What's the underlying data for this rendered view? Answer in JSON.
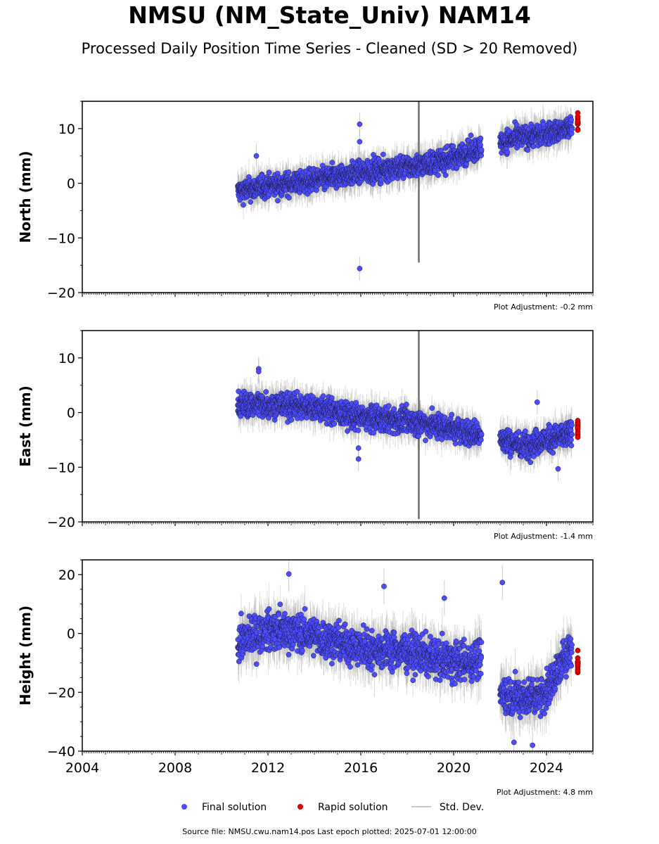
{
  "title": "NMSU (NM_State_Univ) NAM14",
  "subtitle": "Processed Daily Position Time Series - Cleaned (SD > 20 Removed)",
  "footer": "Source file: NMSU.cwu.nam14.pos  Last epoch plotted: 2025-07-01 12:00:00",
  "legend": {
    "final": "Final solution",
    "rapid": "Rapid solution",
    "std": "Std. Dev."
  },
  "colors": {
    "final": "#4b4bff",
    "rapid": "#e60000",
    "std": "#c8c8c8"
  },
  "x_ticks": [
    "2004",
    "2008",
    "2012",
    "2016",
    "2020",
    "2024"
  ],
  "chart_data": [
    {
      "type": "scatter",
      "ylabel": "North (mm)",
      "ylim": [
        -20,
        15
      ],
      "yticks": [
        -20,
        -10,
        0,
        10
      ],
      "xlim": [
        2004.0,
        2026.0
      ],
      "adjustment": "Plot Adjustment: -0.2 mm",
      "final_trend": [
        [
          2010.7,
          -1.5
        ],
        [
          2012.0,
          -0.5
        ],
        [
          2014.0,
          0.5
        ],
        [
          2016.0,
          2.0
        ],
        [
          2018.0,
          3.0
        ],
        [
          2019.5,
          4.0
        ],
        [
          2020.5,
          5.5
        ],
        [
          2021.2,
          6.5
        ],
        [
          2022.0,
          7.5
        ],
        [
          2023.0,
          8.5
        ],
        [
          2024.0,
          9.0
        ],
        [
          2025.0,
          10.0
        ]
      ],
      "final_scatter": 1.6,
      "outliers": [
        [
          2015.95,
          10.8
        ],
        [
          2015.95,
          7.6
        ],
        [
          2015.95,
          -15.6
        ],
        [
          2011.5,
          5.0
        ]
      ],
      "rapid_trend": [
        [
          2025.2,
          10.5
        ],
        [
          2025.5,
          12.0
        ]
      ],
      "rapid_scatter": 1.4,
      "spike": {
        "x": 2018.5,
        "lo": -14.5,
        "hi": 15
      }
    },
    {
      "type": "scatter",
      "ylabel": "East (mm)",
      "ylim": [
        -20,
        15
      ],
      "yticks": [
        -20,
        -10,
        0,
        10
      ],
      "xlim": [
        2004.0,
        2026.0
      ],
      "adjustment": "Plot Adjustment: -1.4 mm",
      "final_trend": [
        [
          2010.7,
          1.5
        ],
        [
          2012.0,
          1.5
        ],
        [
          2014.0,
          1.0
        ],
        [
          2016.0,
          -1.0
        ],
        [
          2018.0,
          -1.5
        ],
        [
          2019.5,
          -2.5
        ],
        [
          2020.5,
          -3.5
        ],
        [
          2021.2,
          -4.0
        ],
        [
          2022.0,
          -5.0
        ],
        [
          2023.0,
          -6.0
        ],
        [
          2024.0,
          -5.0
        ],
        [
          2025.0,
          -4.0
        ]
      ],
      "final_scatter": 1.8,
      "outliers": [
        [
          2011.6,
          8.0
        ],
        [
          2011.6,
          7.5
        ],
        [
          2015.9,
          -8.5
        ],
        [
          2015.9,
          -6.5
        ],
        [
          2023.6,
          1.9
        ],
        [
          2024.5,
          -10.3
        ]
      ],
      "rapid_trend": [
        [
          2025.2,
          -3.0
        ],
        [
          2025.5,
          -2.5
        ]
      ],
      "rapid_scatter": 1.4,
      "spike": {
        "x": 2018.5,
        "lo": -19.5,
        "hi": 15
      }
    },
    {
      "type": "scatter",
      "ylabel": "Height (mm)",
      "ylim": [
        -40,
        25
      ],
      "yticks": [
        -40,
        -20,
        0,
        20
      ],
      "xlim": [
        2004.0,
        2026.0
      ],
      "adjustment": "Plot Adjustment: 4.8 mm",
      "final_trend": [
        [
          2010.7,
          -3.0
        ],
        [
          2012.0,
          1.0
        ],
        [
          2013.0,
          1.0
        ],
        [
          2014.0,
          -1.0
        ],
        [
          2016.0,
          -5.0
        ],
        [
          2018.0,
          -6.0
        ],
        [
          2019.5,
          -9.0
        ],
        [
          2020.5,
          -10.0
        ],
        [
          2021.2,
          -8.0
        ],
        [
          2022.0,
          -20.0
        ],
        [
          2023.0,
          -22.0
        ],
        [
          2024.0,
          -20.0
        ],
        [
          2025.0,
          -5.0
        ]
      ],
      "final_scatter": 5.0,
      "outliers": [
        [
          2012.9,
          20.2
        ],
        [
          2022.1,
          17.3
        ],
        [
          2017.0,
          16.0
        ],
        [
          2019.6,
          12.0
        ],
        [
          2023.4,
          -38.0
        ],
        [
          2022.6,
          -37.0
        ]
      ],
      "rapid_trend": [
        [
          2025.2,
          -8.0
        ],
        [
          2025.5,
          -12.0
        ]
      ],
      "rapid_scatter": 3.5,
      "spike": null
    }
  ]
}
